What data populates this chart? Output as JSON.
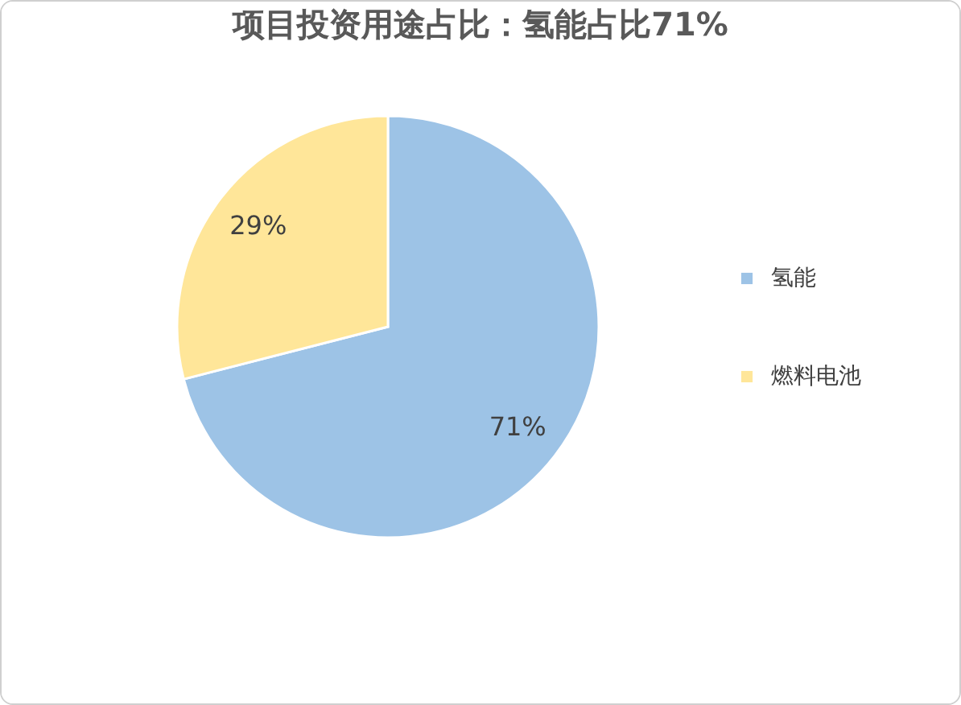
{
  "chart_data": {
    "type": "pie",
    "title": "项目投资用途占比：氢能占比71%",
    "categories": [
      "氢能",
      "燃料电池"
    ],
    "values": [
      71,
      29
    ],
    "colors": [
      "#9dc3e6",
      "#ffe699"
    ],
    "value_labels": [
      "71%",
      "29%"
    ],
    "legend": "right"
  }
}
